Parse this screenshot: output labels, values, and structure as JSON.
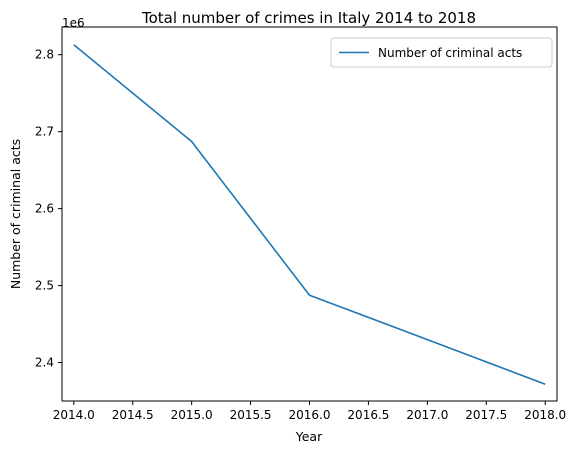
{
  "chart_data": {
    "type": "line",
    "title": "Total number of crimes in Italy 2014 to 2018",
    "xlabel": "Year",
    "ylabel": "Number of criminal acts",
    "y_offset_label": "1e6",
    "xlim": [
      2013.9,
      2018.1
    ],
    "ylim": [
      2.35,
      2.836
    ],
    "x_ticks": [
      2014.0,
      2014.5,
      2015.0,
      2015.5,
      2016.0,
      2016.5,
      2017.0,
      2017.5,
      2018.0
    ],
    "x_tick_labels": [
      "2014.0",
      "2014.5",
      "2015.0",
      "2015.5",
      "2016.0",
      "2016.5",
      "2017.0",
      "2017.5",
      "2018.0"
    ],
    "y_ticks": [
      2.4,
      2.5,
      2.6,
      2.7,
      2.8
    ],
    "y_tick_labels": [
      "2.4",
      "2.5",
      "2.6",
      "2.7",
      "2.8"
    ],
    "grid": false,
    "legend_position": "top-right",
    "series": [
      {
        "name": "Number of criminal acts",
        "color": "#1f77b4",
        "x": [
          2014,
          2015,
          2016,
          2017,
          2018
        ],
        "y": [
          2.812936,
          2.687202,
          2.487389,
          2.429795,
          2.371806
        ]
      }
    ]
  }
}
